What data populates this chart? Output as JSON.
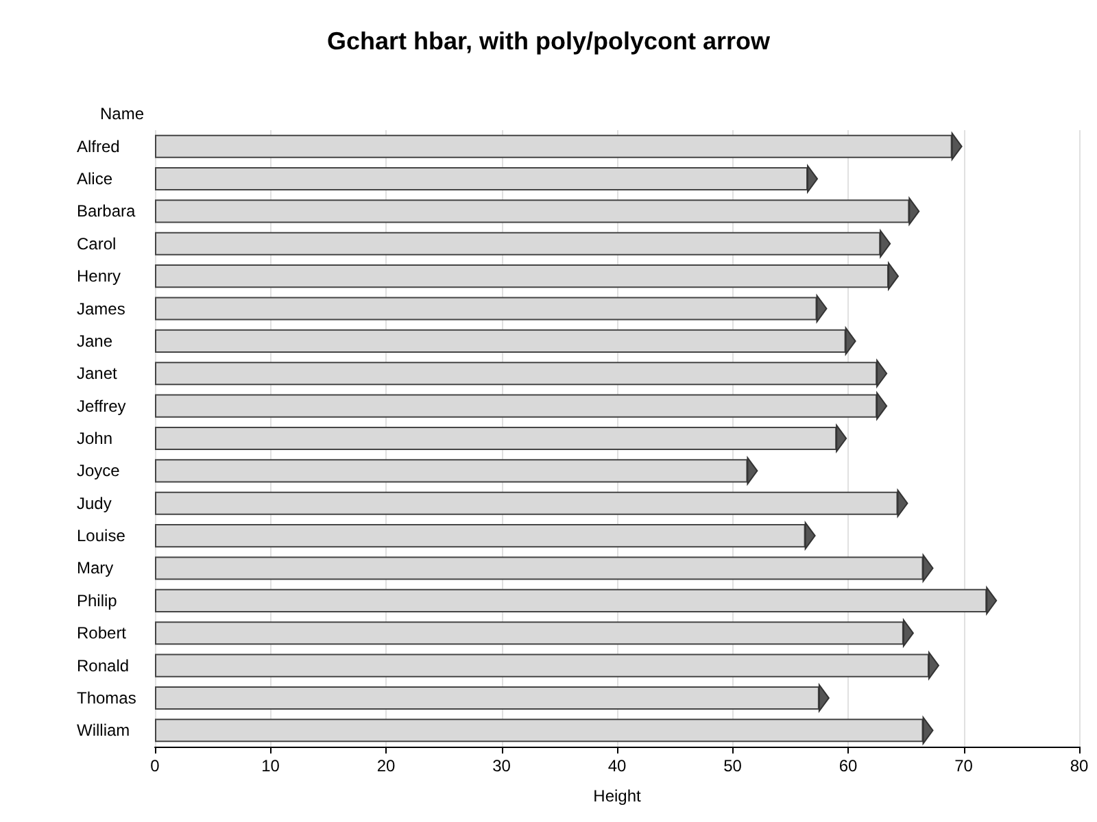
{
  "chart_data": {
    "type": "bar",
    "orientation": "horizontal",
    "title": "Gchart hbar, with poly/polycont arrow",
    "xlabel": "Height",
    "ylabel": "Name",
    "categories": [
      "Alfred",
      "Alice",
      "Barbara",
      "Carol",
      "Henry",
      "James",
      "Jane",
      "Janet",
      "Jeffrey",
      "John",
      "Joyce",
      "Judy",
      "Louise",
      "Mary",
      "Philip",
      "Robert",
      "Ronald",
      "Thomas",
      "William"
    ],
    "values": [
      69,
      56.5,
      65.3,
      62.8,
      63.5,
      57.3,
      59.8,
      62.5,
      62.5,
      59,
      51.3,
      64.3,
      56.3,
      66.5,
      72,
      64.8,
      67,
      57.5,
      66.5
    ],
    "color": "#d9d9d9",
    "xlim": [
      0,
      80
    ],
    "xticks": [
      0,
      10,
      20,
      30,
      40,
      50,
      60,
      70,
      80
    ],
    "grid": "x"
  }
}
